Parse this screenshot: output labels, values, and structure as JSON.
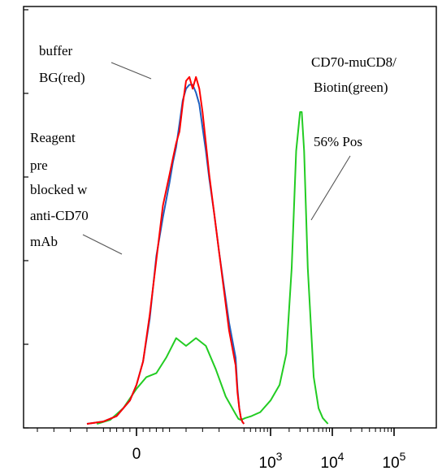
{
  "chart_data": {
    "type": "line",
    "title": "",
    "xlabel": "",
    "ylabel": "",
    "x_scale": "biexponential",
    "grid": false,
    "legend": "none",
    "x_tick_labels": [
      {
        "label": "0",
        "value": 0
      },
      {
        "label": "10",
        "sup": "3",
        "value": 1000
      },
      {
        "label": "10",
        "sup": "4",
        "value": 10000
      },
      {
        "label": "10",
        "sup": "5",
        "value": 100000
      }
    ],
    "series": [
      {
        "name": "buffer BG(red)",
        "color": "#ff0000",
        "points": [
          [
            -150,
            0
          ],
          [
            -100,
            0.6
          ],
          [
            -60,
            2
          ],
          [
            -20,
            6
          ],
          [
            0,
            10
          ],
          [
            20,
            16
          ],
          [
            40,
            28
          ],
          [
            60,
            42
          ],
          [
            80,
            56
          ],
          [
            100,
            64
          ],
          [
            110,
            68
          ],
          [
            120,
            72
          ],
          [
            130,
            75
          ],
          [
            140,
            82
          ],
          [
            150,
            88
          ],
          [
            160,
            89
          ],
          [
            170,
            86
          ],
          [
            180,
            89
          ],
          [
            190,
            86
          ],
          [
            200,
            80
          ],
          [
            210,
            72
          ],
          [
            220,
            64
          ],
          [
            235,
            54
          ],
          [
            250,
            44
          ],
          [
            265,
            34
          ],
          [
            280,
            24
          ],
          [
            300,
            15
          ],
          [
            320,
            8
          ],
          [
            340,
            4
          ],
          [
            360,
            1.5
          ],
          [
            380,
            0.5
          ],
          [
            400,
            0
          ]
        ]
      },
      {
        "name": "Reagent pre blocked w anti-CD70 mAb",
        "color": "#1f5fbf",
        "points": [
          [
            -150,
            0
          ],
          [
            -100,
            0.6
          ],
          [
            -60,
            2
          ],
          [
            -20,
            6
          ],
          [
            0,
            10
          ],
          [
            20,
            16
          ],
          [
            40,
            27
          ],
          [
            60,
            43
          ],
          [
            80,
            53
          ],
          [
            100,
            62
          ],
          [
            110,
            67
          ],
          [
            120,
            71
          ],
          [
            130,
            77
          ],
          [
            140,
            83
          ],
          [
            150,
            86
          ],
          [
            160,
            87
          ],
          [
            170,
            87
          ],
          [
            180,
            85
          ],
          [
            190,
            82
          ],
          [
            200,
            76
          ],
          [
            210,
            70
          ],
          [
            220,
            63
          ],
          [
            235,
            54
          ],
          [
            250,
            44
          ],
          [
            265,
            35
          ],
          [
            280,
            26
          ],
          [
            300,
            17
          ],
          [
            320,
            9
          ],
          [
            340,
            4
          ],
          [
            360,
            1.5
          ],
          [
            380,
            0.5
          ],
          [
            400,
            0
          ]
        ]
      },
      {
        "name": "CD70-muCD8/ Biotin(green)",
        "color": "#22cc22",
        "points": [
          [
            -120,
            0
          ],
          [
            -80,
            1
          ],
          [
            -40,
            4
          ],
          [
            0,
            9
          ],
          [
            30,
            12
          ],
          [
            60,
            13
          ],
          [
            90,
            17
          ],
          [
            120,
            22
          ],
          [
            150,
            20
          ],
          [
            180,
            22
          ],
          [
            210,
            20
          ],
          [
            240,
            14
          ],
          [
            270,
            7
          ],
          [
            300,
            2.5
          ],
          [
            330,
            1.3
          ],
          [
            360,
            1
          ],
          [
            420,
            1.5
          ],
          [
            520,
            2
          ],
          [
            700,
            3
          ],
          [
            1000,
            6
          ],
          [
            1400,
            10
          ],
          [
            1800,
            18
          ],
          [
            2200,
            40
          ],
          [
            2600,
            70
          ],
          [
            3000,
            80
          ],
          [
            3200,
            80
          ],
          [
            3500,
            70
          ],
          [
            4000,
            40
          ],
          [
            5000,
            12
          ],
          [
            6000,
            4
          ],
          [
            7000,
            1.5
          ],
          [
            8500,
            0
          ]
        ]
      }
    ],
    "annotations": [
      {
        "lines": [
          "buffer",
          "BG(red)"
        ]
      },
      {
        "lines": [
          "Reagent",
          "pre",
          "blocked w",
          "anti-CD70",
          "mAb"
        ]
      },
      {
        "lines": [
          "CD70-muCD8/",
          "Biotin(green)"
        ]
      },
      {
        "lines": [
          "56% Pos"
        ]
      }
    ]
  }
}
